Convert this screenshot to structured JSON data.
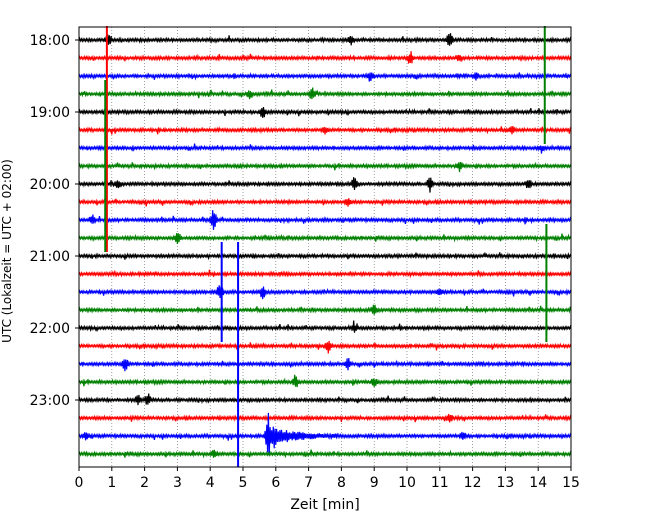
{
  "chart_data": {
    "type": "line",
    "title": "",
    "xlabel": "Zeit  [min]",
    "ylabel": "UTC (Lokalzeit = UTC + 02:00)",
    "xlim": [
      0,
      15
    ],
    "x_ticks": [
      0,
      1,
      2,
      3,
      4,
      5,
      6,
      7,
      8,
      9,
      10,
      11,
      12,
      13,
      14,
      15
    ],
    "x_tick_labels": [
      "0",
      "1",
      "2",
      "3",
      "4",
      "5",
      "6",
      "7",
      "8",
      "9",
      "10",
      "11",
      "12",
      "13",
      "14",
      "15"
    ],
    "y_tick_labels": [
      "18:00",
      "19:00",
      "20:00",
      "21:00",
      "22:00",
      "23:00"
    ],
    "grid_x": true,
    "grid_style": "dotted",
    "colors": [
      "#000000",
      "#ff0000",
      "#0000ff",
      "#008000"
    ],
    "rows": [
      {
        "start": "18:00",
        "color": "#000000"
      },
      {
        "start": "18:15",
        "color": "#ff0000"
      },
      {
        "start": "18:30",
        "color": "#0000ff"
      },
      {
        "start": "18:45",
        "color": "#008000"
      },
      {
        "start": "19:00",
        "color": "#000000"
      },
      {
        "start": "19:15",
        "color": "#ff0000"
      },
      {
        "start": "19:30",
        "color": "#0000ff"
      },
      {
        "start": "19:45",
        "color": "#008000"
      },
      {
        "start": "20:00",
        "color": "#000000"
      },
      {
        "start": "20:15",
        "color": "#ff0000"
      },
      {
        "start": "20:30",
        "color": "#0000ff"
      },
      {
        "start": "20:45",
        "color": "#008000"
      },
      {
        "start": "21:00",
        "color": "#000000"
      },
      {
        "start": "21:15",
        "color": "#ff0000"
      },
      {
        "start": "21:30",
        "color": "#0000ff"
      },
      {
        "start": "21:45",
        "color": "#008000"
      },
      {
        "start": "22:00",
        "color": "#000000"
      },
      {
        "start": "22:15",
        "color": "#ff0000"
      },
      {
        "start": "22:30",
        "color": "#0000ff"
      },
      {
        "start": "22:45",
        "color": "#008000"
      },
      {
        "start": "23:00",
        "color": "#000000"
      },
      {
        "start": "23:15",
        "color": "#ff0000"
      },
      {
        "start": "23:30",
        "color": "#0000ff"
      },
      {
        "start": "23:45",
        "color": "#008000"
      }
    ],
    "events": [
      {
        "row": 0,
        "t": 0.9,
        "amp": 0.7
      },
      {
        "row": 0,
        "t": 8.3,
        "amp": 0.5
      },
      {
        "row": 0,
        "t": 11.3,
        "amp": 0.9
      },
      {
        "row": 1,
        "t": 10.1,
        "amp": 0.8
      },
      {
        "row": 1,
        "t": 11.6,
        "amp": 0.4
      },
      {
        "row": 2,
        "t": 8.9,
        "amp": 0.5
      },
      {
        "row": 2,
        "t": 12.1,
        "amp": 0.4
      },
      {
        "row": 3,
        "t": 5.2,
        "amp": 0.6
      },
      {
        "row": 3,
        "t": 7.1,
        "amp": 0.7
      },
      {
        "row": 4,
        "t": 5.6,
        "amp": 0.8
      },
      {
        "row": 5,
        "t": 7.5,
        "amp": 0.4
      },
      {
        "row": 5,
        "t": 13.2,
        "amp": 0.4
      },
      {
        "row": 6,
        "t": 14.1,
        "amp": 0.3
      },
      {
        "row": 7,
        "t": 11.6,
        "amp": 0.6
      },
      {
        "row": 8,
        "t": 1.2,
        "amp": 0.5
      },
      {
        "row": 8,
        "t": 8.4,
        "amp": 0.9
      },
      {
        "row": 8,
        "t": 10.7,
        "amp": 0.8
      },
      {
        "row": 8,
        "t": 13.7,
        "amp": 0.6
      },
      {
        "row": 9,
        "t": 8.2,
        "amp": 0.4
      },
      {
        "row": 10,
        "t": 0.4,
        "amp": 0.6
      },
      {
        "row": 10,
        "t": 4.1,
        "amp": 1.2
      },
      {
        "row": 11,
        "t": 3.0,
        "amp": 0.8
      },
      {
        "row": 14,
        "t": 4.3,
        "amp": 1.0
      },
      {
        "row": 14,
        "t": 5.6,
        "amp": 0.7
      },
      {
        "row": 14,
        "t": 11.0,
        "amp": 0.4
      },
      {
        "row": 15,
        "t": 9.0,
        "amp": 0.6
      },
      {
        "row": 16,
        "t": 8.4,
        "amp": 0.4
      },
      {
        "row": 17,
        "t": 7.6,
        "amp": 0.8
      },
      {
        "row": 18,
        "t": 1.4,
        "amp": 0.9
      },
      {
        "row": 18,
        "t": 8.2,
        "amp": 0.7
      },
      {
        "row": 19,
        "t": 6.6,
        "amp": 0.8
      },
      {
        "row": 19,
        "t": 9.0,
        "amp": 0.5
      },
      {
        "row": 20,
        "t": 1.8,
        "amp": 0.5
      },
      {
        "row": 20,
        "t": 2.1,
        "amp": 0.7
      },
      {
        "row": 21,
        "t": 11.3,
        "amp": 0.4
      },
      {
        "row": 22,
        "t": 0.2,
        "amp": 0.5
      },
      {
        "row": 22,
        "t": 11.7,
        "amp": 0.6
      },
      {
        "row": 22,
        "t": 5.75,
        "amp": 1.8,
        "coda": 2.2
      },
      {
        "row": 23,
        "t": 4.1,
        "amp": 0.4
      }
    ],
    "spikes": [
      {
        "t": 0.85,
        "row_from": 0,
        "row_to": 11,
        "color": "#ff0000"
      },
      {
        "t": 0.8,
        "row_from": 3,
        "row_to": 11,
        "color": "#008000"
      },
      {
        "t": 14.2,
        "row_from": 0,
        "row_to": 5,
        "color": "#008000"
      },
      {
        "t": 14.25,
        "row_from": 11,
        "row_to": 16,
        "color": "#008000"
      },
      {
        "t": 4.35,
        "row_from": 12,
        "row_to": 16,
        "color": "#0000ff"
      },
      {
        "t": 4.85,
        "row_from": 12,
        "row_to": 23,
        "color": "#0000ff"
      }
    ]
  }
}
